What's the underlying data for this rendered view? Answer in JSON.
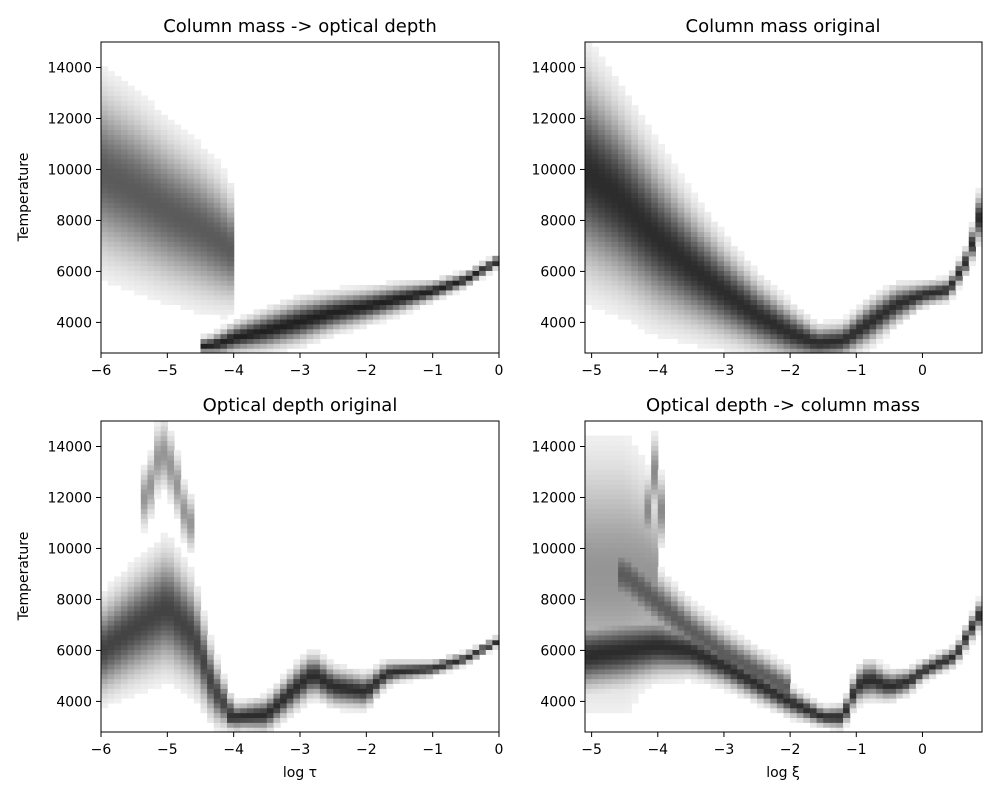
{
  "chart_data": [
    {
      "type": "heatmap",
      "title": "Column mass -> optical depth",
      "xlabel": "",
      "ylabel": "Temperature",
      "xlim": [
        -6,
        0
      ],
      "ylim": [
        2800,
        15000
      ],
      "xticks": [
        -6,
        -5,
        -4,
        -3,
        -2,
        -1,
        0
      ],
      "xtick_labels": [
        "−6",
        "−5",
        "−4",
        "−3",
        "−2",
        "−1",
        "0"
      ],
      "yticks": [
        4000,
        6000,
        8000,
        10000,
        12000,
        14000
      ],
      "ytick_labels": [
        "4000",
        "6000",
        "8000",
        "10000",
        "12000",
        "14000"
      ],
      "colormap": "Greys",
      "density_ridges": [
        {
          "x": [
            -6,
            -5.5,
            -5,
            -4.5,
            -4.2,
            -4.05
          ],
          "y": [
            9900,
            9200,
            8400,
            7700,
            7200,
            6900
          ],
          "spread": [
            3800,
            3600,
            3300,
            3000,
            2700,
            2400
          ],
          "peak": 0.7
        },
        {
          "x": [
            -4.4,
            -4.2,
            -4,
            -3.5,
            -3,
            -2.5,
            -2,
            -1.5,
            -1,
            -0.5,
            0
          ],
          "y": [
            3100,
            3200,
            3400,
            3700,
            4050,
            4400,
            4650,
            4950,
            5250,
            5700,
            6450
          ],
          "spread": [
            350,
            500,
            600,
            800,
            900,
            800,
            700,
            600,
            400,
            300,
            250
          ],
          "peak": 0.95
        }
      ]
    },
    {
      "type": "heatmap",
      "title": "Column mass original",
      "xlabel": "",
      "ylabel": "",
      "xlim": [
        -5.1,
        0.9
      ],
      "ylim": [
        2800,
        15000
      ],
      "xticks": [
        -5,
        -4,
        -3,
        -2,
        -1,
        0
      ],
      "xtick_labels": [
        "−5",
        "−4",
        "−3",
        "−2",
        "−1",
        "0"
      ],
      "yticks": [
        4000,
        6000,
        8000,
        10000,
        12000,
        14000
      ],
      "ytick_labels": [
        "4000",
        "6000",
        "8000",
        "10000",
        "12000",
        "14000"
      ],
      "colormap": "Greys",
      "density_ridges": [
        {
          "x": [
            -5.1,
            -4.6,
            -4,
            -3.5,
            -3,
            -2.5,
            -2,
            -1.6,
            -1.2,
            -0.8,
            -0.4,
            0,
            0.4,
            0.7,
            0.9
          ],
          "y": [
            10000,
            8900,
            7300,
            6200,
            5200,
            4300,
            3600,
            3200,
            3300,
            4000,
            4700,
            5100,
            5300,
            6600,
            8600
          ],
          "spread": [
            4500,
            4000,
            3300,
            2600,
            2000,
            1500,
            1100,
            700,
            700,
            900,
            800,
            500,
            450,
            550,
            1100
          ],
          "peak": 0.9
        }
      ]
    },
    {
      "type": "heatmap",
      "title": "Optical depth original",
      "xlabel": "log τ",
      "ylabel": "Temperature",
      "xlim": [
        -6,
        0
      ],
      "ylim": [
        2800,
        15000
      ],
      "xticks": [
        -6,
        -5,
        -4,
        -3,
        -2,
        -1,
        0
      ],
      "xtick_labels": [
        "−6",
        "−5",
        "−4",
        "−3",
        "−2",
        "−1",
        "0"
      ],
      "yticks": [
        4000,
        6000,
        8000,
        10000,
        12000,
        14000
      ],
      "ytick_labels": [
        "4000",
        "6000",
        "8000",
        "10000",
        "12000",
        "14000"
      ],
      "colormap": "Greys",
      "density_ridges": [
        {
          "x": [
            -6,
            -5.5,
            -5,
            -4.6,
            -4.3,
            -4
          ],
          "y": [
            6000,
            6900,
            7700,
            6600,
            4500,
            3400
          ],
          "spread": [
            2000,
            2300,
            2600,
            2200,
            1400,
            600
          ],
          "peak": 0.8
        },
        {
          "x": [
            -5.3,
            -5.1,
            -4.9,
            -4.7
          ],
          "y": [
            12000,
            14000,
            13000,
            11000
          ],
          "spread": [
            1300,
            1500,
            1400,
            1200
          ],
          "peak": 0.45
        },
        {
          "x": [
            -4,
            -3.5,
            -3,
            -2.8,
            -2.5,
            -2,
            -1.7,
            -1.5,
            -1,
            -0.5,
            0
          ],
          "y": [
            3400,
            3500,
            4700,
            5100,
            4600,
            4400,
            5100,
            5200,
            5300,
            5700,
            6400
          ],
          "spread": [
            500,
            700,
            900,
            900,
            800,
            700,
            500,
            400,
            300,
            250,
            200
          ],
          "peak": 0.9
        }
      ]
    },
    {
      "type": "heatmap",
      "title": "Optical depth -> column mass",
      "xlabel": "log ξ",
      "ylabel": "",
      "xlim": [
        -5.1,
        0.9
      ],
      "ylim": [
        2800,
        15000
      ],
      "xticks": [
        -5,
        -4,
        -3,
        -2,
        -1,
        0
      ],
      "xtick_labels": [
        "−5",
        "−4",
        "−3",
        "−2",
        "−1",
        "0"
      ],
      "yticks": [
        4000,
        6000,
        8000,
        10000,
        12000,
        14000
      ],
      "ytick_labels": [
        "4000",
        "6000",
        "8000",
        "10000",
        "12000",
        "14000"
      ],
      "colormap": "Greys",
      "density_ridges": [
        {
          "x": [
            -5.1,
            -4.8,
            -4.5,
            -4.2,
            -4
          ],
          "y": [
            9000,
            9000,
            9000,
            9000,
            8800
          ],
          "spread": [
            5500,
            5500,
            5500,
            4500,
            3500
          ],
          "peak": 0.45
        },
        {
          "x": [
            -5.1,
            -4.5,
            -4,
            -3.5,
            -3,
            -2.5,
            -2,
            -1.5,
            -1.2,
            -1,
            -0.8,
            -0.5,
            -0.2,
            0,
            0.5,
            0.9
          ],
          "y": [
            5800,
            6000,
            6200,
            6000,
            5400,
            4700,
            4000,
            3400,
            3400,
            4600,
            4900,
            4600,
            4800,
            5200,
            5800,
            7600
          ],
          "spread": [
            1500,
            1500,
            1300,
            1000,
            800,
            700,
            600,
            400,
            500,
            700,
            800,
            600,
            500,
            400,
            400,
            600
          ],
          "peak": 0.9
        },
        {
          "x": [
            -4.5,
            -4,
            -3.5,
            -3,
            -2.5,
            -2
          ],
          "y": [
            9000,
            7900,
            6800,
            5900,
            5200,
            4500
          ],
          "spread": [
            1500,
            1300,
            1100,
            1000,
            900,
            800
          ],
          "peak": 0.7
        },
        {
          "x": [
            -4.15,
            -4.05,
            -3.95
          ],
          "y": [
            11500,
            13000,
            11500
          ],
          "spread": [
            1500,
            1600,
            1500
          ],
          "peak": 0.5
        }
      ]
    }
  ]
}
